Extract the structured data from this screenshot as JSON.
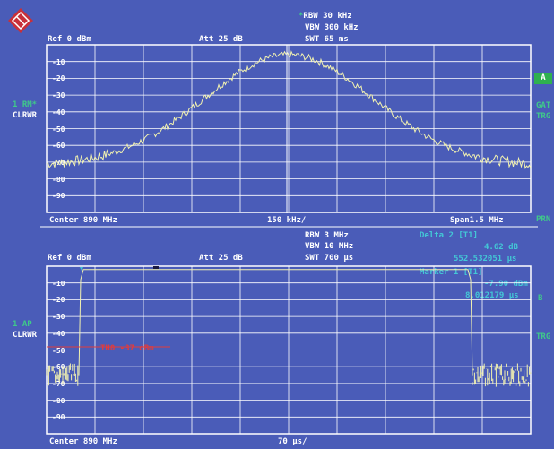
{
  "colors": {
    "background": "#4a5cb8",
    "grid": "#ffffff",
    "trace": "#f2f2b0",
    "label": "#3fc98a",
    "marker": "#43c8d6",
    "threshold": "#e23b3b"
  },
  "logo": {
    "icon": "rohde-schwarz-logo-icon"
  },
  "top": {
    "rbw": "RBW 30 kHz",
    "vbw": "VBW 300 kHz",
    "swt": "SWT 65 ms",
    "ref": "Ref  0 dBm",
    "att": "Att  25 dB",
    "trace_label": "1 RM*",
    "trace_mode": "CLRWR",
    "badge": "A",
    "right_gat": "GAT",
    "right_trg": "TRG",
    "right_prn": "PRN",
    "center": "Center 890 MHz",
    "div": "150 kHz/",
    "span": "Span1.5 MHz"
  },
  "bottom": {
    "rbw": "RBW 3 MHz",
    "vbw": "VBW 10 MHz",
    "swt": "SWT 700 µs",
    "ref": "Ref  0 dBm",
    "att": "Att  25 dB",
    "delta_title": "Delta 2 [T1]",
    "delta_level": "4.62 dB",
    "delta_time": "552.532051 µs",
    "marker_title": "Marker 1 [T1]",
    "marker_level": "-7.90 dBm",
    "marker_time": "8.012179 µs",
    "right_b": "B",
    "right_trg": "TRG",
    "trace_label": "1 AP",
    "trace_mode": "CLRWR",
    "threshold_label": "TH0  -37 dBm",
    "center": "Center 890 MHz",
    "div": "70 µs/"
  },
  "grid_labels": [
    "-10",
    "-20",
    "-30",
    "-40",
    "-50",
    "-60",
    "-70",
    "-80",
    "-90"
  ]
}
